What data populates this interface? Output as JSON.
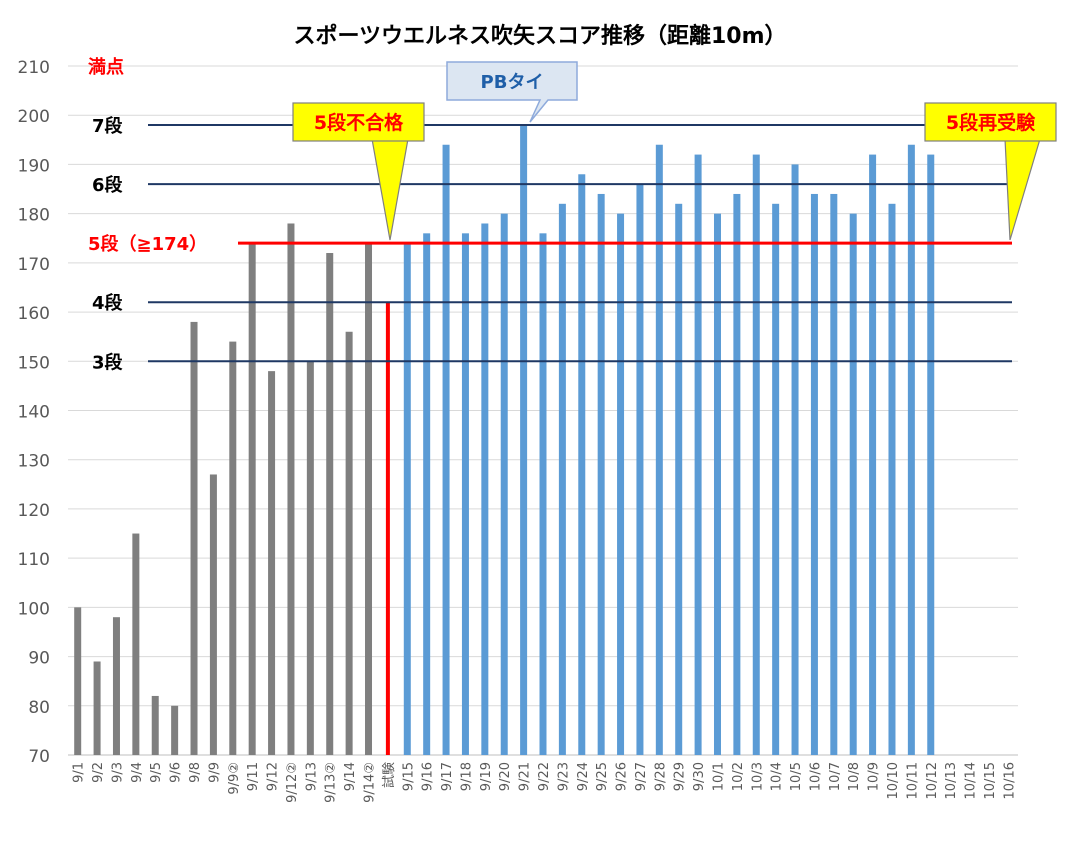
{
  "chart_data": {
    "type": "bar",
    "title": "スポーツウエルネス吹矢スコア推移（距離10m）",
    "ylim": [
      70,
      210
    ],
    "yticks": [
      70,
      80,
      90,
      100,
      110,
      120,
      130,
      140,
      150,
      160,
      170,
      180,
      190,
      200,
      210
    ],
    "grid": true,
    "categories": [
      "9/1",
      "9/2",
      "9/3",
      "9/4",
      "9/5",
      "9/6",
      "9/8",
      "9/9",
      "9/9②",
      "9/11",
      "9/12",
      "9/12②",
      "9/13",
      "9/13②",
      "9/14",
      "9/14②",
      "試験",
      "9/15",
      "9/16",
      "9/17",
      "9/18",
      "9/19",
      "9/20",
      "9/21",
      "9/22",
      "9/23",
      "9/24",
      "9/25",
      "9/26",
      "9/27",
      "9/28",
      "9/29",
      "9/30",
      "10/1",
      "10/2",
      "10/3",
      "10/4",
      "10/5",
      "10/6",
      "10/7",
      "10/8",
      "10/9",
      "10/10",
      "10/11",
      "10/12",
      "10/13",
      "10/14",
      "10/15",
      "10/16"
    ],
    "values": [
      100,
      89,
      98,
      115,
      82,
      80,
      158,
      127,
      154,
      174,
      148,
      178,
      150,
      172,
      156,
      174,
      162,
      174,
      176,
      194,
      176,
      178,
      180,
      198,
      176,
      182,
      188,
      184,
      180,
      186,
      194,
      182,
      192,
      180,
      184,
      192,
      182,
      190,
      184,
      184,
      180,
      192,
      182,
      194,
      192,
      null,
      null,
      null,
      null
    ],
    "bar_colors": {
      "practice": "#7f7f7f",
      "exam": "#ff0000",
      "after": "#5b9bd5"
    },
    "reference_lines": [
      {
        "label": "満点",
        "value": 210,
        "color": "#ff0000",
        "line": false
      },
      {
        "label": "7段",
        "value": 198,
        "color": "#1f3864",
        "line": true
      },
      {
        "label": "6段",
        "value": 186,
        "color": "#1f3864",
        "line": true
      },
      {
        "label": "5段（≧174）",
        "value": 174,
        "color": "#ff0000",
        "line": true
      },
      {
        "label": "4段",
        "value": 162,
        "color": "#1f3864",
        "line": true
      },
      {
        "label": "3段",
        "value": 150,
        "color": "#1f3864",
        "line": true
      }
    ],
    "callouts": [
      {
        "text": "5段不合格",
        "style": "yellow"
      },
      {
        "text": "PBタイ",
        "style": "blue"
      },
      {
        "text": "5段再受験",
        "style": "yellow"
      }
    ]
  }
}
